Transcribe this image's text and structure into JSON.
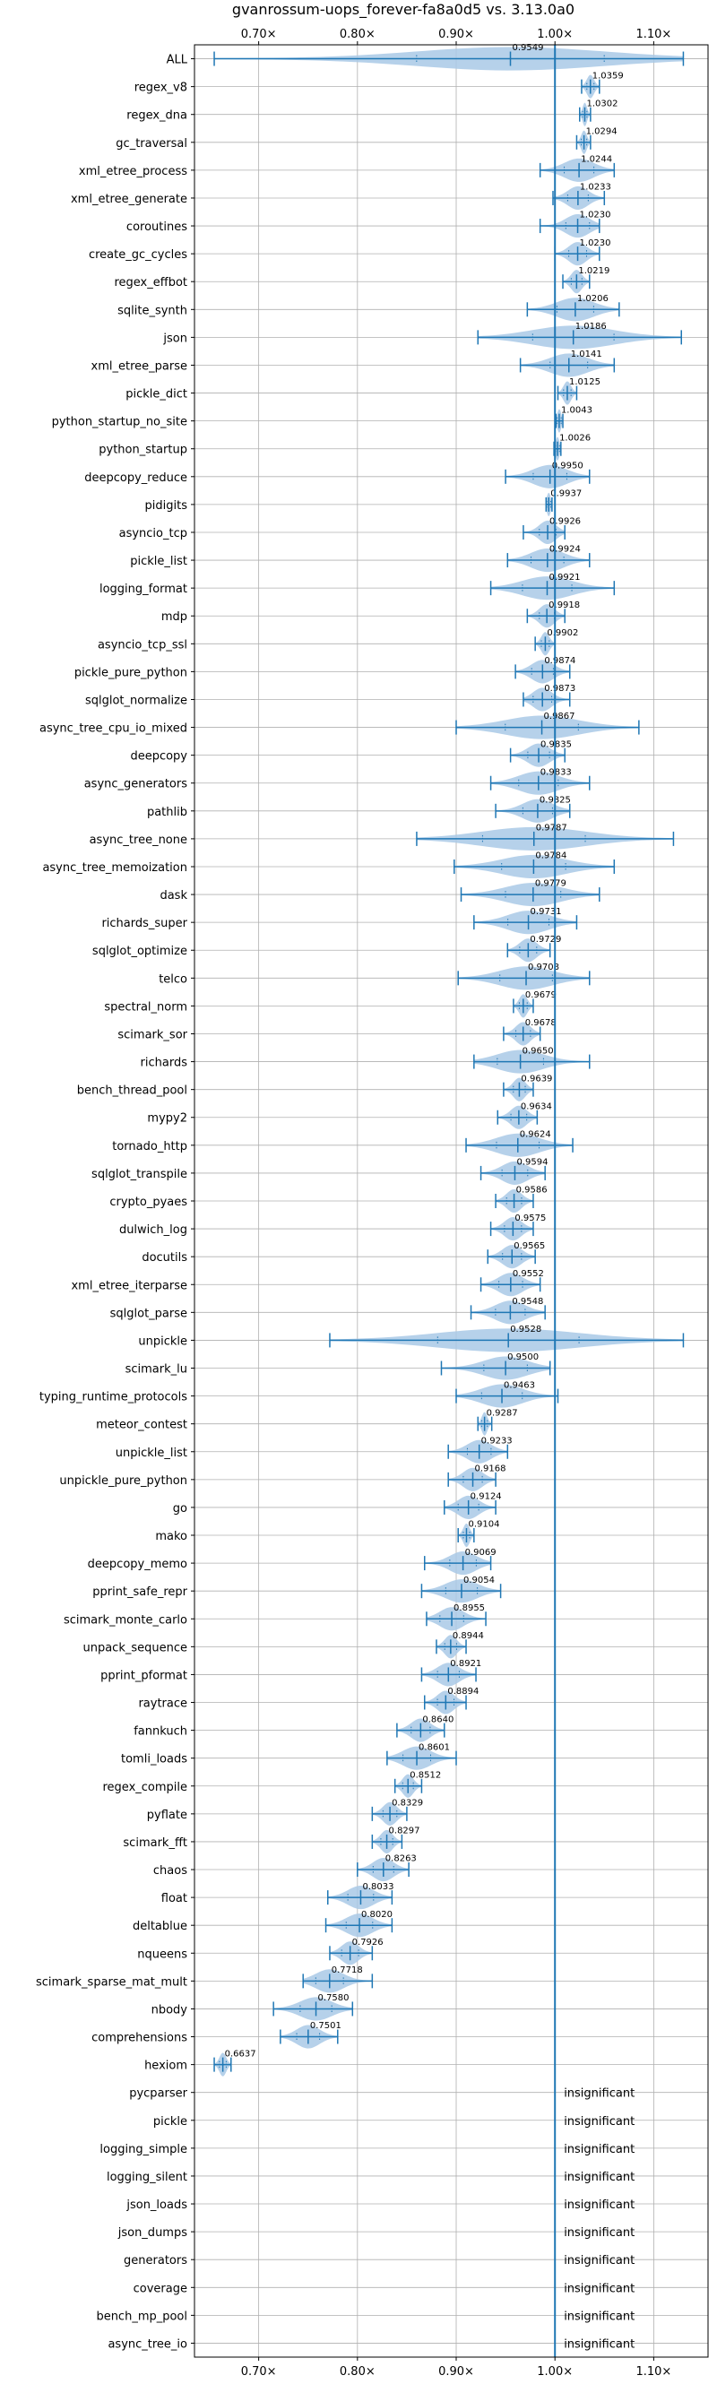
{
  "chart_data": {
    "type": "violin",
    "title": "gvanrossum-uops_forever-fa8a0d5 vs. 3.13.0a0",
    "xlabel": "",
    "ylabel": "",
    "xlim": [
      0.635,
      1.155
    ],
    "x_ticks": [
      0.7,
      0.8,
      0.9,
      1.0,
      1.1
    ],
    "x_tick_labels": [
      "0.70×",
      "0.80×",
      "0.90×",
      "1.00×",
      "1.10×"
    ],
    "x_tick_labels_top": true,
    "x_tick_labels_bottom": true,
    "grid": true,
    "reference_line": 1.0,
    "colors": {
      "violin_fill": "#a9c9e6",
      "line": "#1f77b4",
      "grid": "#b0b0b0",
      "text": "#000000"
    },
    "benchmarks": [
      {
        "name": "ALL",
        "value": 0.9549,
        "value_label": "0.9549",
        "min": 0.655,
        "max": 1.13,
        "median": 0.9549
      },
      {
        "name": "regex_v8",
        "value": 1.0359,
        "value_label": "1.0359",
        "min": 1.027,
        "max": 1.045,
        "median": 1.0359
      },
      {
        "name": "regex_dna",
        "value": 1.0302,
        "value_label": "1.0302",
        "min": 1.025,
        "max": 1.036,
        "median": 1.0302
      },
      {
        "name": "gc_traversal",
        "value": 1.0294,
        "value_label": "1.0294",
        "min": 1.022,
        "max": 1.036,
        "median": 1.0294
      },
      {
        "name": "xml_etree_process",
        "value": 1.0244,
        "value_label": "1.0244",
        "min": 0.985,
        "max": 1.06,
        "median": 1.0244
      },
      {
        "name": "xml_etree_generate",
        "value": 1.0233,
        "value_label": "1.0233",
        "min": 0.998,
        "max": 1.05,
        "median": 1.0233
      },
      {
        "name": "coroutines",
        "value": 1.023,
        "value_label": "1.0230",
        "min": 0.985,
        "max": 1.045,
        "median": 1.023
      },
      {
        "name": "create_gc_cycles",
        "value": 1.023,
        "value_label": "1.0230",
        "min": 1.0,
        "max": 1.045,
        "median": 1.023
      },
      {
        "name": "regex_effbot",
        "value": 1.0219,
        "value_label": "1.0219",
        "min": 1.008,
        "max": 1.035,
        "median": 1.0219
      },
      {
        "name": "sqlite_synth",
        "value": 1.0206,
        "value_label": "1.0206",
        "min": 0.972,
        "max": 1.065,
        "median": 1.0206
      },
      {
        "name": "json",
        "value": 1.0186,
        "value_label": "1.0186",
        "min": 0.922,
        "max": 1.128,
        "median": 1.0186
      },
      {
        "name": "xml_etree_parse",
        "value": 1.0141,
        "value_label": "1.0141",
        "min": 0.965,
        "max": 1.06,
        "median": 1.0141
      },
      {
        "name": "pickle_dict",
        "value": 1.0125,
        "value_label": "1.0125",
        "min": 1.003,
        "max": 1.022,
        "median": 1.0125
      },
      {
        "name": "python_startup_no_site",
        "value": 1.0043,
        "value_label": "1.0043",
        "min": 1.001,
        "max": 1.008,
        "median": 1.0043
      },
      {
        "name": "python_startup",
        "value": 1.0026,
        "value_label": "1.0026",
        "min": 0.999,
        "max": 1.006,
        "median": 1.0026
      },
      {
        "name": "deepcopy_reduce",
        "value": 0.995,
        "value_label": "0.9950",
        "min": 0.95,
        "max": 1.035,
        "median": 0.995
      },
      {
        "name": "pidigits",
        "value": 0.9937,
        "value_label": "0.9937",
        "min": 0.991,
        "max": 0.997,
        "median": 0.9937
      },
      {
        "name": "asyncio_tcp",
        "value": 0.9926,
        "value_label": "0.9926",
        "min": 0.968,
        "max": 1.01,
        "median": 0.9926
      },
      {
        "name": "pickle_list",
        "value": 0.9924,
        "value_label": "0.9924",
        "min": 0.952,
        "max": 1.035,
        "median": 0.9924
      },
      {
        "name": "logging_format",
        "value": 0.9921,
        "value_label": "0.9921",
        "min": 0.935,
        "max": 1.06,
        "median": 0.9921
      },
      {
        "name": "mdp",
        "value": 0.9918,
        "value_label": "0.9918",
        "min": 0.972,
        "max": 1.01,
        "median": 0.9918
      },
      {
        "name": "asyncio_tcp_ssl",
        "value": 0.9902,
        "value_label": "0.9902",
        "min": 0.98,
        "max": 1.0,
        "median": 0.9902
      },
      {
        "name": "pickle_pure_python",
        "value": 0.9874,
        "value_label": "0.9874",
        "min": 0.96,
        "max": 1.015,
        "median": 0.9874
      },
      {
        "name": "sqlglot_normalize",
        "value": 0.9873,
        "value_label": "0.9873",
        "min": 0.968,
        "max": 1.015,
        "median": 0.9873
      },
      {
        "name": "async_tree_cpu_io_mixed",
        "value": 0.9867,
        "value_label": "0.9867",
        "min": 0.9,
        "max": 1.085,
        "median": 0.9867
      },
      {
        "name": "deepcopy",
        "value": 0.9835,
        "value_label": "0.9835",
        "min": 0.955,
        "max": 1.01,
        "median": 0.9835
      },
      {
        "name": "async_generators",
        "value": 0.9833,
        "value_label": "0.9833",
        "min": 0.935,
        "max": 1.035,
        "median": 0.9833
      },
      {
        "name": "pathlib",
        "value": 0.9825,
        "value_label": "0.9825",
        "min": 0.94,
        "max": 1.015,
        "median": 0.9825
      },
      {
        "name": "async_tree_none",
        "value": 0.9787,
        "value_label": "0.9787",
        "min": 0.86,
        "max": 1.12,
        "median": 0.9787
      },
      {
        "name": "async_tree_memoization",
        "value": 0.9784,
        "value_label": "0.9784",
        "min": 0.898,
        "max": 1.06,
        "median": 0.9784
      },
      {
        "name": "dask",
        "value": 0.9779,
        "value_label": "0.9779",
        "min": 0.905,
        "max": 1.045,
        "median": 0.9779
      },
      {
        "name": "richards_super",
        "value": 0.9731,
        "value_label": "0.9731",
        "min": 0.918,
        "max": 1.022,
        "median": 0.9731
      },
      {
        "name": "sqlglot_optimize",
        "value": 0.9729,
        "value_label": "0.9729",
        "min": 0.952,
        "max": 0.995,
        "median": 0.9729
      },
      {
        "name": "telco",
        "value": 0.9708,
        "value_label": "0.9708",
        "min": 0.902,
        "max": 1.035,
        "median": 0.9708
      },
      {
        "name": "spectral_norm",
        "value": 0.9679,
        "value_label": "0.9679",
        "min": 0.958,
        "max": 0.978,
        "median": 0.9679
      },
      {
        "name": "scimark_sor",
        "value": 0.9678,
        "value_label": "0.9678",
        "min": 0.948,
        "max": 0.985,
        "median": 0.9678
      },
      {
        "name": "richards",
        "value": 0.965,
        "value_label": "0.9650",
        "min": 0.918,
        "max": 1.035,
        "median": 0.965
      },
      {
        "name": "bench_thread_pool",
        "value": 0.9639,
        "value_label": "0.9639",
        "min": 0.948,
        "max": 0.978,
        "median": 0.9639
      },
      {
        "name": "mypy2",
        "value": 0.9634,
        "value_label": "0.9634",
        "min": 0.942,
        "max": 0.982,
        "median": 0.9634
      },
      {
        "name": "tornado_http",
        "value": 0.9624,
        "value_label": "0.9624",
        "min": 0.91,
        "max": 1.018,
        "median": 0.9624
      },
      {
        "name": "sqlglot_transpile",
        "value": 0.9594,
        "value_label": "0.9594",
        "min": 0.925,
        "max": 0.99,
        "median": 0.9594
      },
      {
        "name": "crypto_pyaes",
        "value": 0.9586,
        "value_label": "0.9586",
        "min": 0.94,
        "max": 0.978,
        "median": 0.9586
      },
      {
        "name": "dulwich_log",
        "value": 0.9575,
        "value_label": "0.9575",
        "min": 0.935,
        "max": 0.978,
        "median": 0.9575
      },
      {
        "name": "docutils",
        "value": 0.9565,
        "value_label": "0.9565",
        "min": 0.932,
        "max": 0.98,
        "median": 0.9565
      },
      {
        "name": "xml_etree_iterparse",
        "value": 0.9552,
        "value_label": "0.9552",
        "min": 0.925,
        "max": 0.985,
        "median": 0.9552
      },
      {
        "name": "sqlglot_parse",
        "value": 0.9548,
        "value_label": "0.9548",
        "min": 0.915,
        "max": 0.99,
        "median": 0.9548
      },
      {
        "name": "unpickle",
        "value": 0.9528,
        "value_label": "0.9528",
        "min": 0.772,
        "max": 1.13,
        "median": 0.9528
      },
      {
        "name": "scimark_lu",
        "value": 0.95,
        "value_label": "0.9500",
        "min": 0.885,
        "max": 0.995,
        "median": 0.95
      },
      {
        "name": "typing_runtime_protocols",
        "value": 0.9463,
        "value_label": "0.9463",
        "min": 0.9,
        "max": 1.003,
        "median": 0.9463
      },
      {
        "name": "meteor_contest",
        "value": 0.9287,
        "value_label": "0.9287",
        "min": 0.922,
        "max": 0.936,
        "median": 0.9287
      },
      {
        "name": "unpickle_list",
        "value": 0.9233,
        "value_label": "0.9233",
        "min": 0.892,
        "max": 0.952,
        "median": 0.9233
      },
      {
        "name": "unpickle_pure_python",
        "value": 0.9168,
        "value_label": "0.9168",
        "min": 0.892,
        "max": 0.94,
        "median": 0.9168
      },
      {
        "name": "go",
        "value": 0.9124,
        "value_label": "0.9124",
        "min": 0.888,
        "max": 0.94,
        "median": 0.9124
      },
      {
        "name": "mako",
        "value": 0.9104,
        "value_label": "0.9104",
        "min": 0.902,
        "max": 0.918,
        "median": 0.9104
      },
      {
        "name": "deepcopy_memo",
        "value": 0.9069,
        "value_label": "0.9069",
        "min": 0.868,
        "max": 0.935,
        "median": 0.9069
      },
      {
        "name": "pprint_safe_repr",
        "value": 0.9054,
        "value_label": "0.9054",
        "min": 0.865,
        "max": 0.945,
        "median": 0.9054
      },
      {
        "name": "scimark_monte_carlo",
        "value": 0.8955,
        "value_label": "0.8955",
        "min": 0.87,
        "max": 0.93,
        "median": 0.8955
      },
      {
        "name": "unpack_sequence",
        "value": 0.8944,
        "value_label": "0.8944",
        "min": 0.88,
        "max": 0.91,
        "median": 0.8944
      },
      {
        "name": "pprint_pformat",
        "value": 0.8921,
        "value_label": "0.8921",
        "min": 0.865,
        "max": 0.92,
        "median": 0.8921
      },
      {
        "name": "raytrace",
        "value": 0.8894,
        "value_label": "0.8894",
        "min": 0.868,
        "max": 0.91,
        "median": 0.8894
      },
      {
        "name": "fannkuch",
        "value": 0.864,
        "value_label": "0.8640",
        "min": 0.84,
        "max": 0.888,
        "median": 0.864
      },
      {
        "name": "tomli_loads",
        "value": 0.8601,
        "value_label": "0.8601",
        "min": 0.83,
        "max": 0.9,
        "median": 0.8601
      },
      {
        "name": "regex_compile",
        "value": 0.8512,
        "value_label": "0.8512",
        "min": 0.838,
        "max": 0.865,
        "median": 0.8512
      },
      {
        "name": "pyflate",
        "value": 0.8329,
        "value_label": "0.8329",
        "min": 0.815,
        "max": 0.85,
        "median": 0.8329
      },
      {
        "name": "scimark_fft",
        "value": 0.8297,
        "value_label": "0.8297",
        "min": 0.815,
        "max": 0.845,
        "median": 0.8297
      },
      {
        "name": "chaos",
        "value": 0.8263,
        "value_label": "0.8263",
        "min": 0.8,
        "max": 0.852,
        "median": 0.8263
      },
      {
        "name": "float",
        "value": 0.8033,
        "value_label": "0.8033",
        "min": 0.77,
        "max": 0.835,
        "median": 0.8033
      },
      {
        "name": "deltablue",
        "value": 0.802,
        "value_label": "0.8020",
        "min": 0.768,
        "max": 0.835,
        "median": 0.802
      },
      {
        "name": "nqueens",
        "value": 0.7926,
        "value_label": "0.7926",
        "min": 0.772,
        "max": 0.815,
        "median": 0.7926
      },
      {
        "name": "scimark_sparse_mat_mult",
        "value": 0.7718,
        "value_label": "0.7718",
        "min": 0.745,
        "max": 0.815,
        "median": 0.7718
      },
      {
        "name": "nbody",
        "value": 0.758,
        "value_label": "0.7580",
        "min": 0.715,
        "max": 0.795,
        "median": 0.758
      },
      {
        "name": "comprehensions",
        "value": 0.7501,
        "value_label": "0.7501",
        "min": 0.722,
        "max": 0.78,
        "median": 0.7501
      },
      {
        "name": "hexiom",
        "value": 0.6637,
        "value_label": "0.6637",
        "min": 0.655,
        "max": 0.672,
        "median": 0.6637
      },
      {
        "name": "pycparser",
        "insignificant": true
      },
      {
        "name": "pickle",
        "insignificant": true
      },
      {
        "name": "logging_simple",
        "insignificant": true
      },
      {
        "name": "logging_silent",
        "insignificant": true
      },
      {
        "name": "json_loads",
        "insignificant": true
      },
      {
        "name": "json_dumps",
        "insignificant": true
      },
      {
        "name": "generators",
        "insignificant": true
      },
      {
        "name": "coverage",
        "insignificant": true
      },
      {
        "name": "bench_mp_pool",
        "insignificant": true
      },
      {
        "name": "async_tree_io",
        "insignificant": true
      }
    ],
    "insignificant_label": "insignificant"
  }
}
